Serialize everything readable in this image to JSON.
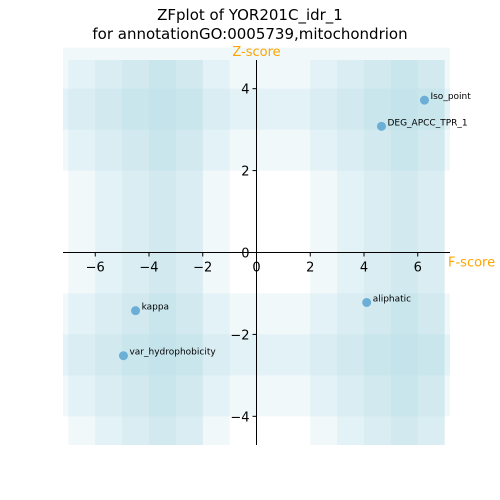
{
  "chart_data": {
    "type": "scatter",
    "title_line1": "ZFplot of YOR201C_idr_1",
    "title_line2": "for annotationGO:0005739,mitochondrion",
    "xlabel": "F-score",
    "ylabel": "Z-score",
    "xlim": [
      -7.2,
      7.2
    ],
    "ylim": [
      -4.7,
      4.7
    ],
    "xticks": [
      -6,
      -4,
      -2,
      0,
      2,
      4,
      6
    ],
    "yticks": [
      -4,
      -2,
      0,
      2,
      4
    ],
    "axis_label_color": "#FFA500",
    "point_color": "#6BAED6",
    "band_color": "#ADD8E6",
    "points": [
      {
        "label": "Iso_point",
        "x": 6.25,
        "y": 3.72
      },
      {
        "label": "DEG_APCC_TPR_1",
        "x": 4.65,
        "y": 3.08
      },
      {
        "label": "aliphatic",
        "x": 4.1,
        "y": -1.22
      },
      {
        "label": "kappa",
        "x": -4.5,
        "y": -1.42
      },
      {
        "label": "var_hydrophobicity",
        "x": -4.95,
        "y": -2.52
      }
    ],
    "x_bands": [
      [
        -7,
        -1
      ],
      [
        -6,
        -2
      ],
      [
        -5,
        -3
      ],
      [
        -4,
        -2
      ],
      [
        2,
        7
      ],
      [
        3,
        7
      ],
      [
        4,
        6
      ],
      [
        5,
        7
      ]
    ],
    "y_bands": [
      [
        2,
        4
      ],
      [
        3,
        5
      ],
      [
        -4,
        -1
      ],
      [
        -3,
        -2
      ]
    ]
  }
}
